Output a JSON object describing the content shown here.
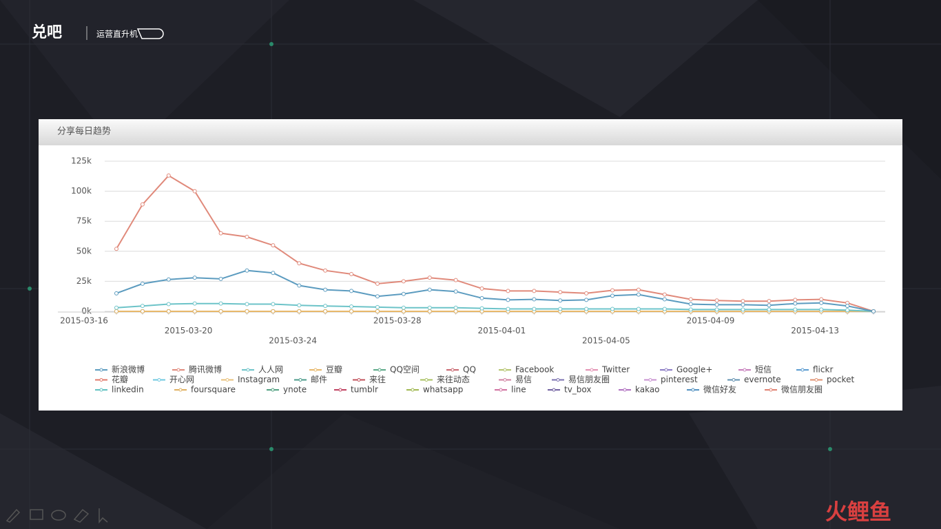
{
  "slide": {
    "logo": "兑吧",
    "tagline": "运营直升机",
    "watermark": "火鲤鱼"
  },
  "chart_data": {
    "type": "line",
    "title": "分享每日趋势",
    "categories": [
      "2015-03-16",
      null,
      null,
      null,
      "2015-03-20",
      null,
      null,
      null,
      "2015-03-24",
      null,
      null,
      null,
      "2015-03-28",
      null,
      null,
      null,
      "2015-04-01",
      null,
      null,
      null,
      "2015-04-05",
      null,
      null,
      null,
      "2015-04-09",
      null,
      null,
      null,
      "2015-04-13",
      null
    ],
    "ylim": [
      0,
      125000
    ],
    "yticks": [
      {
        "value": 0,
        "label": "0k"
      },
      {
        "value": 25000,
        "label": "25k"
      },
      {
        "value": 50000,
        "label": "50k"
      },
      {
        "value": 75000,
        "label": "75k"
      },
      {
        "value": 100000,
        "label": "100k"
      },
      {
        "value": 125000,
        "label": "125k"
      }
    ],
    "grid": true,
    "legend": "bottom",
    "series": [
      {
        "name": "新浪微博",
        "color": "#5b9bbf",
        "values": [
          15000,
          23000,
          26500,
          28000,
          27000,
          34000,
          32000,
          21500,
          18000,
          17000,
          12500,
          14500,
          18000,
          16500,
          11000,
          9500,
          10000,
          9000,
          9500,
          13000,
          14000,
          10000,
          6000,
          5500,
          5500,
          5000,
          6500,
          7000,
          4500,
          0
        ]
      },
      {
        "name": "腾讯微博",
        "color": "#e0897a",
        "values": [
          52000,
          89000,
          113000,
          100000,
          65000,
          62000,
          55000,
          40000,
          34000,
          31000,
          23000,
          25000,
          28000,
          26000,
          19000,
          17000,
          17000,
          16000,
          15000,
          17500,
          18000,
          14000,
          10000,
          9000,
          8500,
          8500,
          9500,
          10000,
          7000,
          0
        ]
      },
      {
        "name": "人人网",
        "color": "#6cc3c8",
        "values": [
          3000,
          4500,
          6000,
          6500,
          6500,
          6000,
          6000,
          5000,
          4500,
          4000,
          3500,
          3000,
          3000,
          3000,
          2500,
          2000,
          2000,
          2000,
          2000,
          2000,
          2000,
          2000,
          1500,
          1500,
          1500,
          1500,
          1500,
          1500,
          1000,
          0
        ]
      },
      {
        "name": "豆瓣",
        "color": "#e8b86a",
        "values": [
          0,
          0,
          0,
          0,
          0,
          0,
          0,
          0,
          0,
          0,
          0,
          0,
          0,
          0,
          0,
          0,
          0,
          0,
          0,
          0,
          0,
          0,
          0,
          0,
          0,
          0,
          0,
          0,
          0,
          0
        ]
      },
      {
        "name": "QQ空间",
        "color": "#5aa887",
        "values": [
          0,
          0,
          0,
          0,
          0,
          0,
          0,
          0,
          0,
          0,
          0,
          0,
          0,
          0,
          0,
          0,
          0,
          0,
          0,
          0,
          0,
          0,
          0,
          0,
          0,
          0,
          0,
          0,
          0,
          0
        ]
      },
      {
        "name": "QQ",
        "color": "#c9666f",
        "values": [
          0,
          0,
          0,
          0,
          0,
          0,
          0,
          0,
          0,
          0,
          0,
          0,
          0,
          0,
          0,
          0,
          0,
          0,
          0,
          0,
          0,
          0,
          0,
          0,
          0,
          0,
          0,
          0,
          0,
          0
        ]
      },
      {
        "name": "Facebook",
        "color": "#b5c46e",
        "values": [
          0,
          0,
          0,
          0,
          0,
          0,
          0,
          0,
          0,
          0,
          0,
          0,
          0,
          0,
          0,
          0,
          0,
          0,
          0,
          0,
          0,
          0,
          0,
          0,
          0,
          0,
          0,
          0,
          0,
          0
        ]
      },
      {
        "name": "Twitter",
        "color": "#e38fb1",
        "values": [
          0,
          0,
          0,
          0,
          0,
          0,
          0,
          0,
          0,
          0,
          0,
          0,
          0,
          0,
          0,
          0,
          0,
          0,
          0,
          0,
          0,
          0,
          0,
          0,
          0,
          0,
          0,
          0,
          0,
          0
        ]
      },
      {
        "name": "Google+",
        "color": "#8a7ac4",
        "values": [
          0,
          0,
          0,
          0,
          0,
          0,
          0,
          0,
          0,
          0,
          0,
          0,
          0,
          0,
          0,
          0,
          0,
          0,
          0,
          0,
          0,
          0,
          0,
          0,
          0,
          0,
          0,
          0,
          0,
          0
        ]
      },
      {
        "name": "短信",
        "color": "#c77dbb",
        "values": [
          0,
          0,
          0,
          0,
          0,
          0,
          0,
          0,
          0,
          0,
          0,
          0,
          0,
          0,
          0,
          0,
          0,
          0,
          0,
          0,
          0,
          0,
          0,
          0,
          0,
          0,
          0,
          0,
          0,
          0
        ]
      },
      {
        "name": "flickr",
        "color": "#5a9bd0",
        "values": [
          0,
          0,
          0,
          0,
          0,
          0,
          0,
          0,
          0,
          0,
          0,
          0,
          0,
          0,
          0,
          0,
          0,
          0,
          0,
          0,
          0,
          0,
          0,
          0,
          0,
          0,
          0,
          0,
          0,
          0
        ]
      },
      {
        "name": "花瓣",
        "color": "#e0786a",
        "values": [
          0,
          0,
          0,
          0,
          0,
          0,
          0,
          0,
          0,
          0,
          0,
          0,
          0,
          0,
          0,
          0,
          0,
          0,
          0,
          0,
          0,
          0,
          0,
          0,
          0,
          0,
          0,
          0,
          0,
          0
        ]
      },
      {
        "name": "开心网",
        "color": "#6ec8e0",
        "values": [
          0,
          0,
          0,
          0,
          0,
          0,
          0,
          0,
          0,
          0,
          0,
          0,
          0,
          0,
          0,
          0,
          0,
          0,
          0,
          0,
          0,
          0,
          0,
          0,
          0,
          0,
          0,
          0,
          0,
          0
        ]
      },
      {
        "name": "Instagram",
        "color": "#e8c07a",
        "values": [
          0,
          0,
          0,
          0,
          0,
          0,
          0,
          0,
          0,
          0,
          0,
          0,
          0,
          0,
          0,
          0,
          0,
          0,
          0,
          0,
          0,
          0,
          0,
          0,
          0,
          0,
          0,
          0,
          0,
          0
        ]
      },
      {
        "name": "邮件",
        "color": "#4a9a8a",
        "values": [
          0,
          0,
          0,
          0,
          0,
          0,
          0,
          0,
          0,
          0,
          0,
          0,
          0,
          0,
          0,
          0,
          0,
          0,
          0,
          0,
          0,
          0,
          0,
          0,
          0,
          0,
          0,
          0,
          0,
          0
        ]
      },
      {
        "name": "来往",
        "color": "#c0505a",
        "values": [
          0,
          0,
          0,
          0,
          0,
          0,
          0,
          0,
          0,
          0,
          0,
          0,
          0,
          0,
          0,
          0,
          0,
          0,
          0,
          0,
          0,
          0,
          0,
          0,
          0,
          0,
          0,
          0,
          0,
          0
        ]
      },
      {
        "name": "来往动态",
        "color": "#a8c060",
        "values": [
          0,
          0,
          0,
          0,
          0,
          0,
          0,
          0,
          0,
          0,
          0,
          0,
          0,
          0,
          0,
          0,
          0,
          0,
          0,
          0,
          0,
          0,
          0,
          0,
          0,
          0,
          0,
          0,
          0,
          0
        ]
      },
      {
        "name": "易信",
        "color": "#d080a0",
        "values": [
          0,
          0,
          0,
          0,
          0,
          0,
          0,
          0,
          0,
          0,
          0,
          0,
          0,
          0,
          0,
          0,
          0,
          0,
          0,
          0,
          0,
          0,
          0,
          0,
          0,
          0,
          0,
          0,
          0,
          0
        ]
      },
      {
        "name": "易信朋友圈",
        "color": "#7a70b0",
        "values": [
          0,
          0,
          0,
          0,
          0,
          0,
          0,
          0,
          0,
          0,
          0,
          0,
          0,
          0,
          0,
          0,
          0,
          0,
          0,
          0,
          0,
          0,
          0,
          0,
          0,
          0,
          0,
          0,
          0,
          0
        ]
      },
      {
        "name": "pinterest",
        "color": "#c890d0",
        "values": [
          0,
          0,
          0,
          0,
          0,
          0,
          0,
          0,
          0,
          0,
          0,
          0,
          0,
          0,
          0,
          0,
          0,
          0,
          0,
          0,
          0,
          0,
          0,
          0,
          0,
          0,
          0,
          0,
          0,
          0
        ]
      },
      {
        "name": "evernote",
        "color": "#6090b0",
        "values": [
          0,
          0,
          0,
          0,
          0,
          0,
          0,
          0,
          0,
          0,
          0,
          0,
          0,
          0,
          0,
          0,
          0,
          0,
          0,
          0,
          0,
          0,
          0,
          0,
          0,
          0,
          0,
          0,
          0,
          0
        ]
      },
      {
        "name": "pocket",
        "color": "#e09070",
        "values": [
          0,
          0,
          0,
          0,
          0,
          0,
          0,
          0,
          0,
          0,
          0,
          0,
          0,
          0,
          0,
          0,
          0,
          0,
          0,
          0,
          0,
          0,
          0,
          0,
          0,
          0,
          0,
          0,
          0,
          0
        ]
      },
      {
        "name": "linkedin",
        "color": "#60c0c0",
        "values": [
          0,
          0,
          0,
          0,
          0,
          0,
          0,
          0,
          0,
          0,
          0,
          0,
          0,
          0,
          0,
          0,
          0,
          0,
          0,
          0,
          0,
          0,
          0,
          0,
          0,
          0,
          0,
          0,
          0,
          0
        ]
      },
      {
        "name": "foursquare",
        "color": "#e0b060",
        "values": [
          0,
          0,
          0,
          0,
          0,
          0,
          0,
          0,
          0,
          0,
          0,
          0,
          0,
          0,
          0,
          0,
          0,
          0,
          0,
          0,
          0,
          0,
          0,
          0,
          0,
          0,
          0,
          0,
          0,
          0
        ]
      },
      {
        "name": "ynote",
        "color": "#50a080",
        "values": [
          0,
          0,
          0,
          0,
          0,
          0,
          0,
          0,
          0,
          0,
          0,
          0,
          0,
          0,
          0,
          0,
          0,
          0,
          0,
          0,
          0,
          0,
          0,
          0,
          0,
          0,
          0,
          0,
          0,
          0
        ]
      },
      {
        "name": "tumblr",
        "color": "#c04060",
        "values": [
          0,
          0,
          0,
          0,
          0,
          0,
          0,
          0,
          0,
          0,
          0,
          0,
          0,
          0,
          0,
          0,
          0,
          0,
          0,
          0,
          0,
          0,
          0,
          0,
          0,
          0,
          0,
          0,
          0,
          0
        ]
      },
      {
        "name": "whatsapp",
        "color": "#a0b850",
        "values": [
          0,
          0,
          0,
          0,
          0,
          0,
          0,
          0,
          0,
          0,
          0,
          0,
          0,
          0,
          0,
          0,
          0,
          0,
          0,
          0,
          0,
          0,
          0,
          0,
          0,
          0,
          0,
          0,
          0,
          0
        ]
      },
      {
        "name": "line",
        "color": "#d070a0",
        "values": [
          0,
          0,
          0,
          0,
          0,
          0,
          0,
          0,
          0,
          0,
          0,
          0,
          0,
          0,
          0,
          0,
          0,
          0,
          0,
          0,
          0,
          0,
          0,
          0,
          0,
          0,
          0,
          0,
          0,
          0
        ]
      },
      {
        "name": "tv_box",
        "color": "#7060a0",
        "values": [
          0,
          0,
          0,
          0,
          0,
          0,
          0,
          0,
          0,
          0,
          0,
          0,
          0,
          0,
          0,
          0,
          0,
          0,
          0,
          0,
          0,
          0,
          0,
          0,
          0,
          0,
          0,
          0,
          0,
          0
        ]
      },
      {
        "name": "kakao",
        "color": "#b070c0",
        "values": [
          0,
          0,
          0,
          0,
          0,
          0,
          0,
          0,
          0,
          0,
          0,
          0,
          0,
          0,
          0,
          0,
          0,
          0,
          0,
          0,
          0,
          0,
          0,
          0,
          0,
          0,
          0,
          0,
          0,
          0
        ]
      },
      {
        "name": "微信好友",
        "color": "#5090c0",
        "values": [
          0,
          0,
          0,
          0,
          0,
          0,
          0,
          0,
          0,
          0,
          0,
          0,
          0,
          0,
          0,
          0,
          0,
          0,
          0,
          0,
          0,
          0,
          0,
          0,
          0,
          0,
          0,
          0,
          0,
          0
        ]
      },
      {
        "name": "微信朋友圈",
        "color": "#e08070",
        "values": [
          0,
          0,
          0,
          0,
          0,
          0,
          0,
          0,
          0,
          0,
          0,
          0,
          0,
          0,
          0,
          0,
          0,
          0,
          0,
          0,
          0,
          0,
          0,
          0,
          0,
          0,
          0,
          0,
          0,
          0
        ]
      }
    ]
  }
}
